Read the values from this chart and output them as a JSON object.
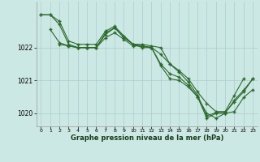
{
  "background_color": "#cce8e4",
  "grid_color": "#aacccc",
  "line_color": "#2d6a2d",
  "xlabel": "Graphe pression niveau de la mer (hPa)",
  "ylim": [
    1019.6,
    1023.4
  ],
  "xlim": [
    -0.5,
    23.5
  ],
  "yticks": [
    1020,
    1021,
    1022
  ],
  "xticks": [
    0,
    1,
    2,
    3,
    4,
    5,
    6,
    7,
    8,
    9,
    10,
    11,
    12,
    13,
    14,
    15,
    16,
    17,
    18,
    19,
    20,
    21,
    22,
    23
  ],
  "line1_x": [
    0,
    1,
    2,
    3,
    4,
    5,
    6,
    7,
    8,
    9,
    10,
    11,
    12,
    13,
    14,
    15,
    16,
    17,
    18,
    19,
    20,
    21,
    22
  ],
  "line1_y": [
    1023.0,
    1023.0,
    1022.7,
    1022.1,
    1022.0,
    1022.0,
    1022.0,
    1022.3,
    1022.45,
    1022.25,
    1022.05,
    1022.05,
    1022.0,
    1021.8,
    1021.5,
    1021.3,
    1021.05,
    1020.65,
    1020.3,
    1020.05,
    1020.05,
    1020.55,
    1021.05
  ],
  "line2_x": [
    1,
    2,
    3,
    4,
    5,
    6,
    7,
    8,
    9,
    10,
    11,
    12,
    13,
    14,
    15,
    16,
    17,
    18,
    19,
    20,
    21,
    22,
    23
  ],
  "line2_y": [
    1022.55,
    1022.15,
    1022.05,
    1022.0,
    1022.0,
    1022.0,
    1022.4,
    1022.6,
    1022.3,
    1022.1,
    1022.05,
    1022.0,
    1021.5,
    1021.2,
    1021.1,
    1020.85,
    1020.5,
    1019.85,
    1020.0,
    1020.0,
    1020.4,
    1020.7,
    1021.05
  ],
  "line3_x": [
    2,
    3,
    4,
    5,
    6,
    7,
    8,
    9,
    10,
    11,
    12,
    13,
    14,
    15,
    16,
    17,
    18,
    19,
    20,
    21,
    22,
    23
  ],
  "line3_y": [
    1022.1,
    1022.05,
    1022.0,
    1022.0,
    1022.0,
    1022.45,
    1022.6,
    1022.35,
    1022.1,
    1022.0,
    1022.0,
    1021.45,
    1021.05,
    1021.0,
    1020.8,
    1020.5,
    1020.0,
    1019.85,
    1020.0,
    1020.05,
    1020.48,
    1020.72
  ],
  "line4_x": [
    0,
    1,
    2,
    3,
    4,
    5,
    6,
    7,
    8,
    9,
    10,
    11,
    12,
    13,
    14,
    15,
    16,
    17,
    18,
    19,
    20,
    21,
    22,
    23
  ],
  "line4_y": [
    1023.0,
    1023.0,
    1022.8,
    1022.2,
    1022.1,
    1022.1,
    1022.1,
    1022.5,
    1022.65,
    1022.35,
    1022.1,
    1022.1,
    1022.05,
    1022.0,
    1021.5,
    1021.25,
    1020.95,
    1020.55,
    1019.92,
    1020.02,
    1020.02,
    1020.35,
    1020.65,
    1021.05
  ]
}
